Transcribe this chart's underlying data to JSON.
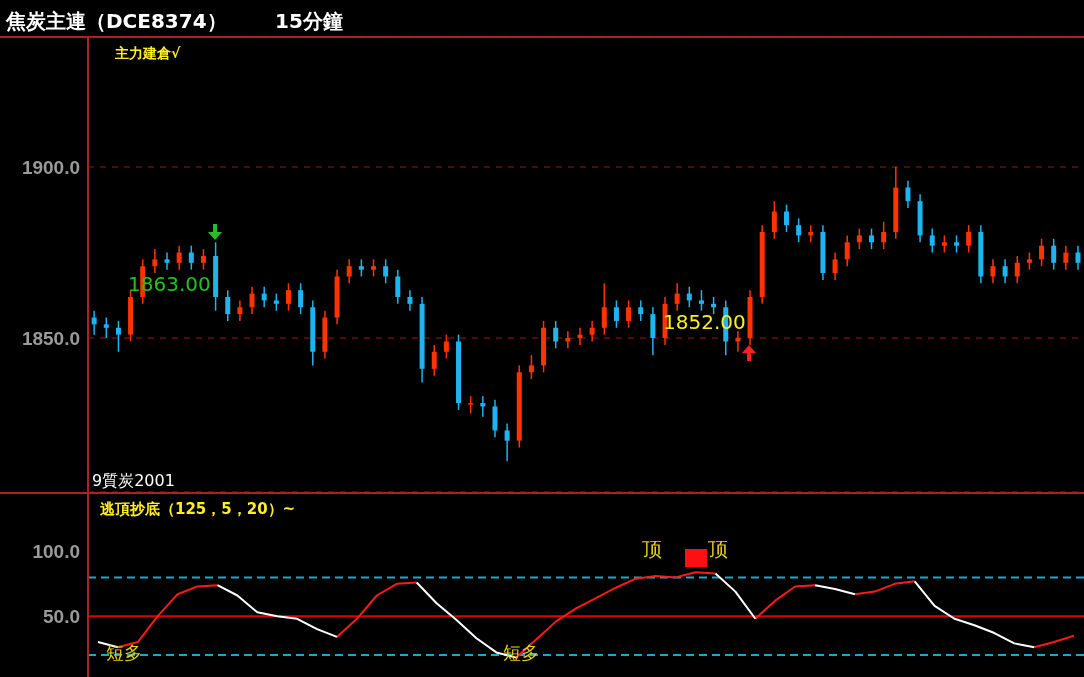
{
  "chart_data": [
    {
      "type": "candlestick",
      "title": "焦炭主連（DCE8374）",
      "subtitle": "15分鐘",
      "categories": [
        null,
        null,
        null,
        null,
        null,
        null,
        null,
        null,
        null,
        null,
        null,
        null,
        null,
        null,
        null,
        null,
        null,
        null,
        null,
        null,
        null,
        null,
        null,
        null,
        null,
        null,
        null,
        null,
        null,
        null,
        null,
        null,
        null,
        null,
        null,
        null,
        null,
        null,
        null,
        null,
        null,
        null,
        null,
        null,
        null,
        null,
        null,
        null,
        null,
        null,
        null,
        null,
        null,
        null,
        null,
        null,
        null,
        null,
        null,
        null,
        null,
        null,
        null,
        null,
        null,
        null,
        null,
        null,
        null,
        null,
        null,
        null,
        null,
        null,
        null,
        null,
        null,
        null,
        null,
        null,
        null,
        null
      ],
      "ohlc": [
        [
          1856,
          1858,
          1851,
          1854
        ],
        [
          1854,
          1856,
          1850,
          1853
        ],
        [
          1853,
          1855,
          1846,
          1851
        ],
        [
          1851,
          1864,
          1849,
          1862
        ],
        [
          1862,
          1873,
          1860,
          1871
        ],
        [
          1871,
          1876,
          1869,
          1873
        ],
        [
          1873,
          1875,
          1870,
          1872
        ],
        [
          1872,
          1877,
          1870,
          1875
        ],
        [
          1875,
          1877,
          1870,
          1872
        ],
        [
          1872,
          1876,
          1870,
          1874
        ],
        [
          1874,
          1878,
          1858,
          1862
        ],
        [
          1862,
          1864,
          1855,
          1857
        ],
        [
          1857,
          1861,
          1855,
          1859
        ],
        [
          1859,
          1865,
          1857,
          1863
        ],
        [
          1863,
          1865,
          1859,
          1861
        ],
        [
          1861,
          1863,
          1858,
          1860
        ],
        [
          1860,
          1866,
          1858,
          1864
        ],
        [
          1864,
          1866,
          1857,
          1859
        ],
        [
          1859,
          1861,
          1842,
          1846
        ],
        [
          1846,
          1858,
          1844,
          1856
        ],
        [
          1856,
          1870,
          1854,
          1868
        ],
        [
          1868,
          1873,
          1866,
          1871
        ],
        [
          1871,
          1873,
          1868,
          1870
        ],
        [
          1870,
          1873,
          1868,
          1871
        ],
        [
          1871,
          1873,
          1866,
          1868
        ],
        [
          1868,
          1870,
          1860,
          1862
        ],
        [
          1862,
          1864,
          1858,
          1860
        ],
        [
          1860,
          1862,
          1837,
          1841
        ],
        [
          1841,
          1848,
          1839,
          1846
        ],
        [
          1846,
          1851,
          1844,
          1849
        ],
        [
          1849,
          1851,
          1829,
          1831
        ],
        [
          1831,
          1833,
          1828,
          1831
        ],
        [
          1831,
          1833,
          1827,
          1830
        ],
        [
          1830,
          1832,
          1821,
          1823
        ],
        [
          1823,
          1825,
          1814,
          1820
        ],
        [
          1820,
          1842,
          1818,
          1840
        ],
        [
          1840,
          1845,
          1838,
          1842
        ],
        [
          1842,
          1855,
          1840,
          1853
        ],
        [
          1853,
          1855,
          1847,
          1849
        ],
        [
          1849,
          1852,
          1847,
          1850
        ],
        [
          1850,
          1853,
          1848,
          1851
        ],
        [
          1851,
          1855,
          1849,
          1853
        ],
        [
          1853,
          1866,
          1851,
          1859
        ],
        [
          1859,
          1861,
          1853,
          1855
        ],
        [
          1855,
          1861,
          1853,
          1859
        ],
        [
          1859,
          1861,
          1855,
          1857
        ],
        [
          1857,
          1859,
          1845,
          1850
        ],
        [
          1850,
          1862,
          1848,
          1860
        ],
        [
          1860,
          1866,
          1858,
          1863
        ],
        [
          1863,
          1865,
          1859,
          1861
        ],
        [
          1861,
          1864,
          1858,
          1860
        ],
        [
          1860,
          1862,
          1857,
          1859
        ],
        [
          1859,
          1861,
          1845,
          1849
        ],
        [
          1849,
          1852,
          1846,
          1850
        ],
        [
          1850,
          1864,
          1848,
          1862
        ],
        [
          1862,
          1883,
          1860,
          1881
        ],
        [
          1881,
          1890,
          1879,
          1887
        ],
        [
          1887,
          1889,
          1881,
          1883
        ],
        [
          1883,
          1885,
          1878,
          1880
        ],
        [
          1880,
          1883,
          1878,
          1881
        ],
        [
          1881,
          1883,
          1867,
          1869
        ],
        [
          1869,
          1875,
          1867,
          1873
        ],
        [
          1873,
          1880,
          1871,
          1878
        ],
        [
          1878,
          1882,
          1876,
          1880
        ],
        [
          1880,
          1882,
          1876,
          1878
        ],
        [
          1878,
          1884,
          1876,
          1881
        ],
        [
          1881,
          1900,
          1879,
          1894
        ],
        [
          1894,
          1896,
          1888,
          1890
        ],
        [
          1890,
          1892,
          1878,
          1880
        ],
        [
          1880,
          1882,
          1875,
          1877
        ],
        [
          1877,
          1880,
          1875,
          1878
        ],
        [
          1878,
          1880,
          1875,
          1877
        ],
        [
          1877,
          1883,
          1875,
          1881
        ],
        [
          1881,
          1883,
          1866,
          1868
        ],
        [
          1868,
          1873,
          1866,
          1871
        ],
        [
          1871,
          1873,
          1866,
          1868
        ],
        [
          1868,
          1874,
          1866,
          1872
        ],
        [
          1872,
          1875,
          1870,
          1873
        ],
        [
          1873,
          1879,
          1871,
          1877
        ],
        [
          1877,
          1879,
          1870,
          1872
        ],
        [
          1872,
          1877,
          1870,
          1875
        ],
        [
          1875,
          1877,
          1870,
          1872
        ]
      ],
      "colors": [
        "#1eb4f0",
        "#1eb4f0",
        "#1eb4f0",
        "#ff3300",
        "#ff3300",
        "#ff3300",
        "#1eb4f0",
        "#ff3300",
        "#1eb4f0",
        "#ff3300",
        "#1eb4f0",
        "#1eb4f0",
        "#ff3300",
        "#ff3300",
        "#1eb4f0",
        "#1eb4f0",
        "#ff3300",
        "#1eb4f0",
        "#1eb4f0",
        "#ff3300",
        "#ff3300",
        "#ff3300",
        "#1eb4f0",
        "#ff3300",
        "#1eb4f0",
        "#1eb4f0",
        "#1eb4f0",
        "#1eb4f0",
        "#ff3300",
        "#ff3300",
        "#1eb4f0",
        "#ff3300",
        "#1eb4f0",
        "#1eb4f0",
        "#1eb4f0",
        "#ff3300",
        "#ff3300",
        "#ff3300",
        "#1eb4f0",
        "#ff3300",
        "#ff3300",
        "#ff3300",
        "#ff3300",
        "#1eb4f0",
        "#ff3300",
        "#1eb4f0",
        "#1eb4f0",
        "#ff3300",
        "#ff3300",
        "#1eb4f0",
        "#1eb4f0",
        "#1eb4f0",
        "#1eb4f0",
        "#ff3300",
        "#ff3300",
        "#ff3300",
        "#ff3300",
        "#1eb4f0",
        "#1eb4f0",
        "#ff3300",
        "#1eb4f0",
        "#ff3300",
        "#ff3300",
        "#ff3300",
        "#1eb4f0",
        "#ff3300",
        "#ff3300",
        "#1eb4f0",
        "#1eb4f0",
        "#1eb4f0",
        "#ff3300",
        "#1eb4f0",
        "#ff3300",
        "#1eb4f0",
        "#ff3300",
        "#1eb4f0",
        "#ff3300",
        "#ff3300",
        "#ff3300",
        "#1eb4f0",
        "#ff3300",
        "#1eb4f0"
      ],
      "ylim": [
        1805,
        1938
      ],
      "yticks": [
        {
          "value": 1900,
          "label": "1900.0"
        },
        {
          "value": 1850,
          "label": "1850.0"
        }
      ],
      "grid": "y",
      "tick_labels": "y",
      "annotations": [
        "主力建倉√",
        "1863.00",
        "1852.00",
        "9質炭2001"
      ]
    },
    {
      "type": "line",
      "title": "逃頂抄底（125，5，20）~",
      "categories": [
        null,
        null,
        null,
        null,
        null,
        null,
        null,
        null,
        null,
        null,
        null,
        null,
        null,
        null,
        null,
        null,
        null,
        null,
        null,
        null,
        null,
        null,
        null,
        null,
        null,
        null,
        null,
        null,
        null,
        null,
        null,
        null,
        null,
        null,
        null,
        null,
        null,
        null,
        null,
        null,
        null,
        null,
        null,
        null,
        null,
        null,
        null,
        null,
        null,
        null
      ],
      "series": [
        {
          "color": "#ff1a1a",
          "values": [
            null,
            26,
            30,
            50,
            67,
            73,
            74,
            null,
            null,
            null,
            null,
            null,
            34,
            48,
            66,
            75,
            76,
            null,
            null,
            null,
            null,
            18,
            32,
            46,
            56,
            64,
            72,
            79,
            81,
            80,
            84,
            83,
            null,
            48,
            62,
            73,
            74,
            null,
            67,
            69,
            75,
            77,
            null,
            null,
            null,
            null,
            null,
            26,
            30,
            35
          ]
        },
        {
          "color": "#ffffff",
          "values": [
            30,
            26,
            null,
            null,
            null,
            null,
            74,
            66,
            53,
            50,
            48,
            40,
            34,
            null,
            null,
            null,
            76,
            60,
            47,
            33,
            22,
            18,
            null,
            null,
            null,
            null,
            null,
            null,
            null,
            null,
            null,
            83,
            69,
            48,
            null,
            null,
            74,
            71,
            67,
            null,
            null,
            77,
            58,
            48,
            43,
            37,
            29,
            26,
            null,
            null
          ]
        }
      ],
      "ylim": [
        3,
        146
      ],
      "yticks": [
        {
          "value": 100,
          "label": "100.0"
        },
        {
          "value": 50,
          "label": "50.0"
        }
      ],
      "tick_labels": "y",
      "ref_lines": [
        {
          "axis": "y",
          "value": 80,
          "color": "#1ea8c8",
          "line_style": "dashed"
        },
        {
          "axis": "y",
          "value": 50,
          "color": "#e00000",
          "line_style": "solid"
        },
        {
          "axis": "y",
          "value": 20,
          "color": "#1ea8c8",
          "line_style": "dashed"
        }
      ],
      "annotations": [
        "顶",
        "顶",
        "短多",
        "短多"
      ]
    }
  ]
}
